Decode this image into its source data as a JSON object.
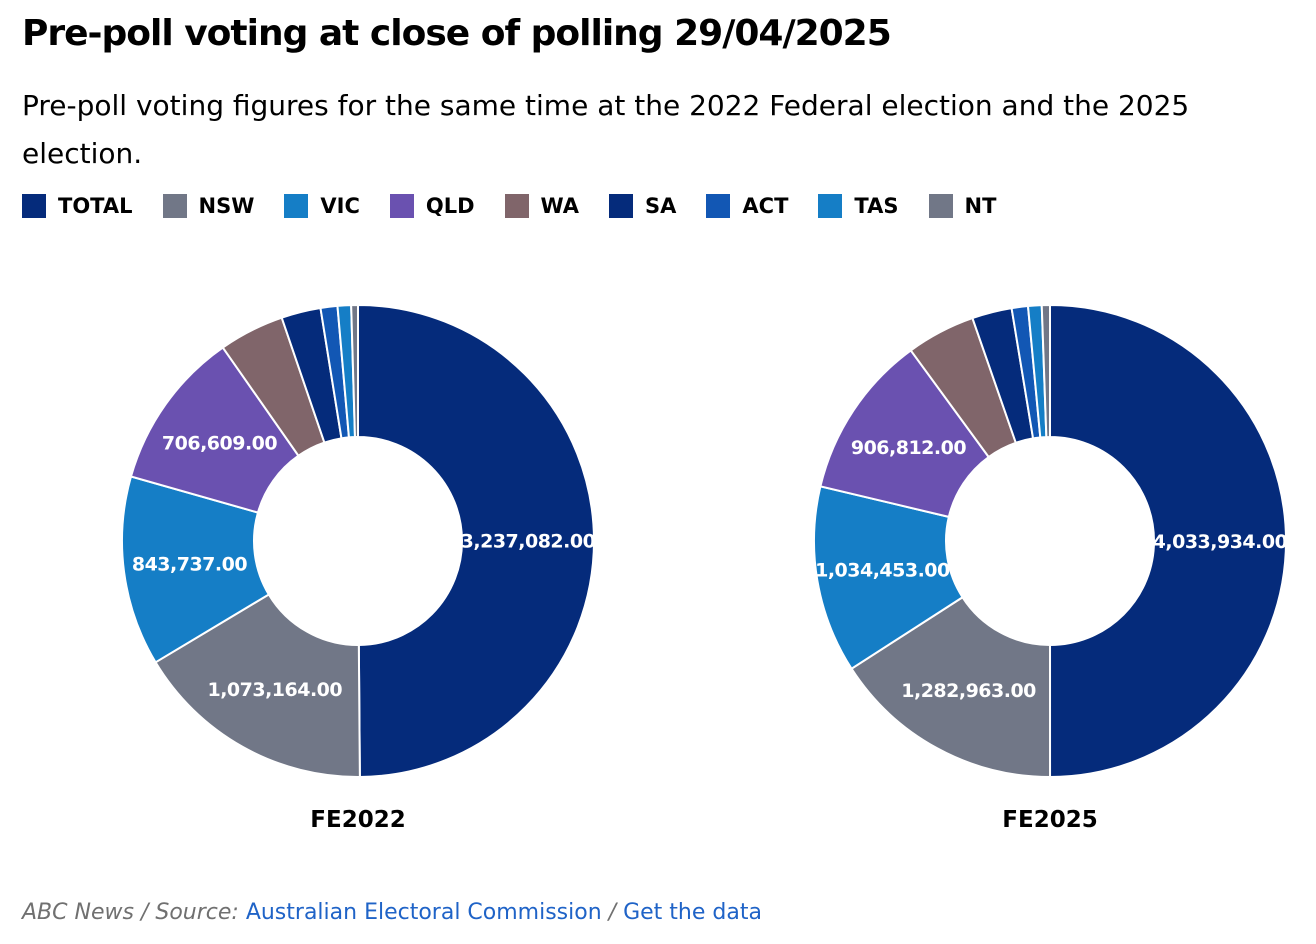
{
  "title": "Pre-poll voting at close of polling 29/04/2025",
  "subtitle": "Pre-poll voting figures for the same time at the 2022 Federal election and the 2025 election.",
  "legend": [
    {
      "label": "TOTAL",
      "color": "#052b7b"
    },
    {
      "label": "NSW",
      "color": "#717787"
    },
    {
      "label": "VIC",
      "color": "#157ec6"
    },
    {
      "label": "QLD",
      "color": "#6a51b0"
    },
    {
      "label": "WA",
      "color": "#80656a"
    },
    {
      "label": "SA",
      "color": "#052b7b"
    },
    {
      "label": "ACT",
      "color": "#1257b4"
    },
    {
      "label": "TAS",
      "color": "#157ec6"
    },
    {
      "label": "NT",
      "color": "#717787"
    }
  ],
  "chart_data": [
    {
      "type": "pie",
      "title": "FE2022",
      "categories": [
        "TOTAL",
        "NSW",
        "VIC",
        "QLD",
        "WA",
        "SA",
        "ACT",
        "TAS",
        "NT"
      ],
      "values": [
        3237082,
        1073164,
        843737,
        706609,
        290000,
        175000,
        75000,
        60000,
        30000
      ],
      "labels": [
        "3,237,082.00",
        "1,073,164.00",
        "843,737.00",
        "706,609.00",
        "",
        "",
        "",
        "",
        ""
      ]
    },
    {
      "type": "pie",
      "title": "FE2025",
      "categories": [
        "TOTAL",
        "NSW",
        "VIC",
        "QLD",
        "WA",
        "SA",
        "ACT",
        "TAS",
        "NT"
      ],
      "values": [
        4033934,
        1282963,
        1034453,
        906812,
        380000,
        220000,
        90000,
        75000,
        45000
      ],
      "labels": [
        "4,033,934.00",
        "1,282,963.00",
        "1,034,453.00",
        "906,812.00",
        "",
        "",
        "",
        "",
        ""
      ]
    }
  ],
  "footer": {
    "attribution": "ABC News",
    "sep1": " / ",
    "source_label": "Source: ",
    "source_link": "Australian Electoral Commission",
    "sep2": " / ",
    "data_link": "Get the data"
  }
}
